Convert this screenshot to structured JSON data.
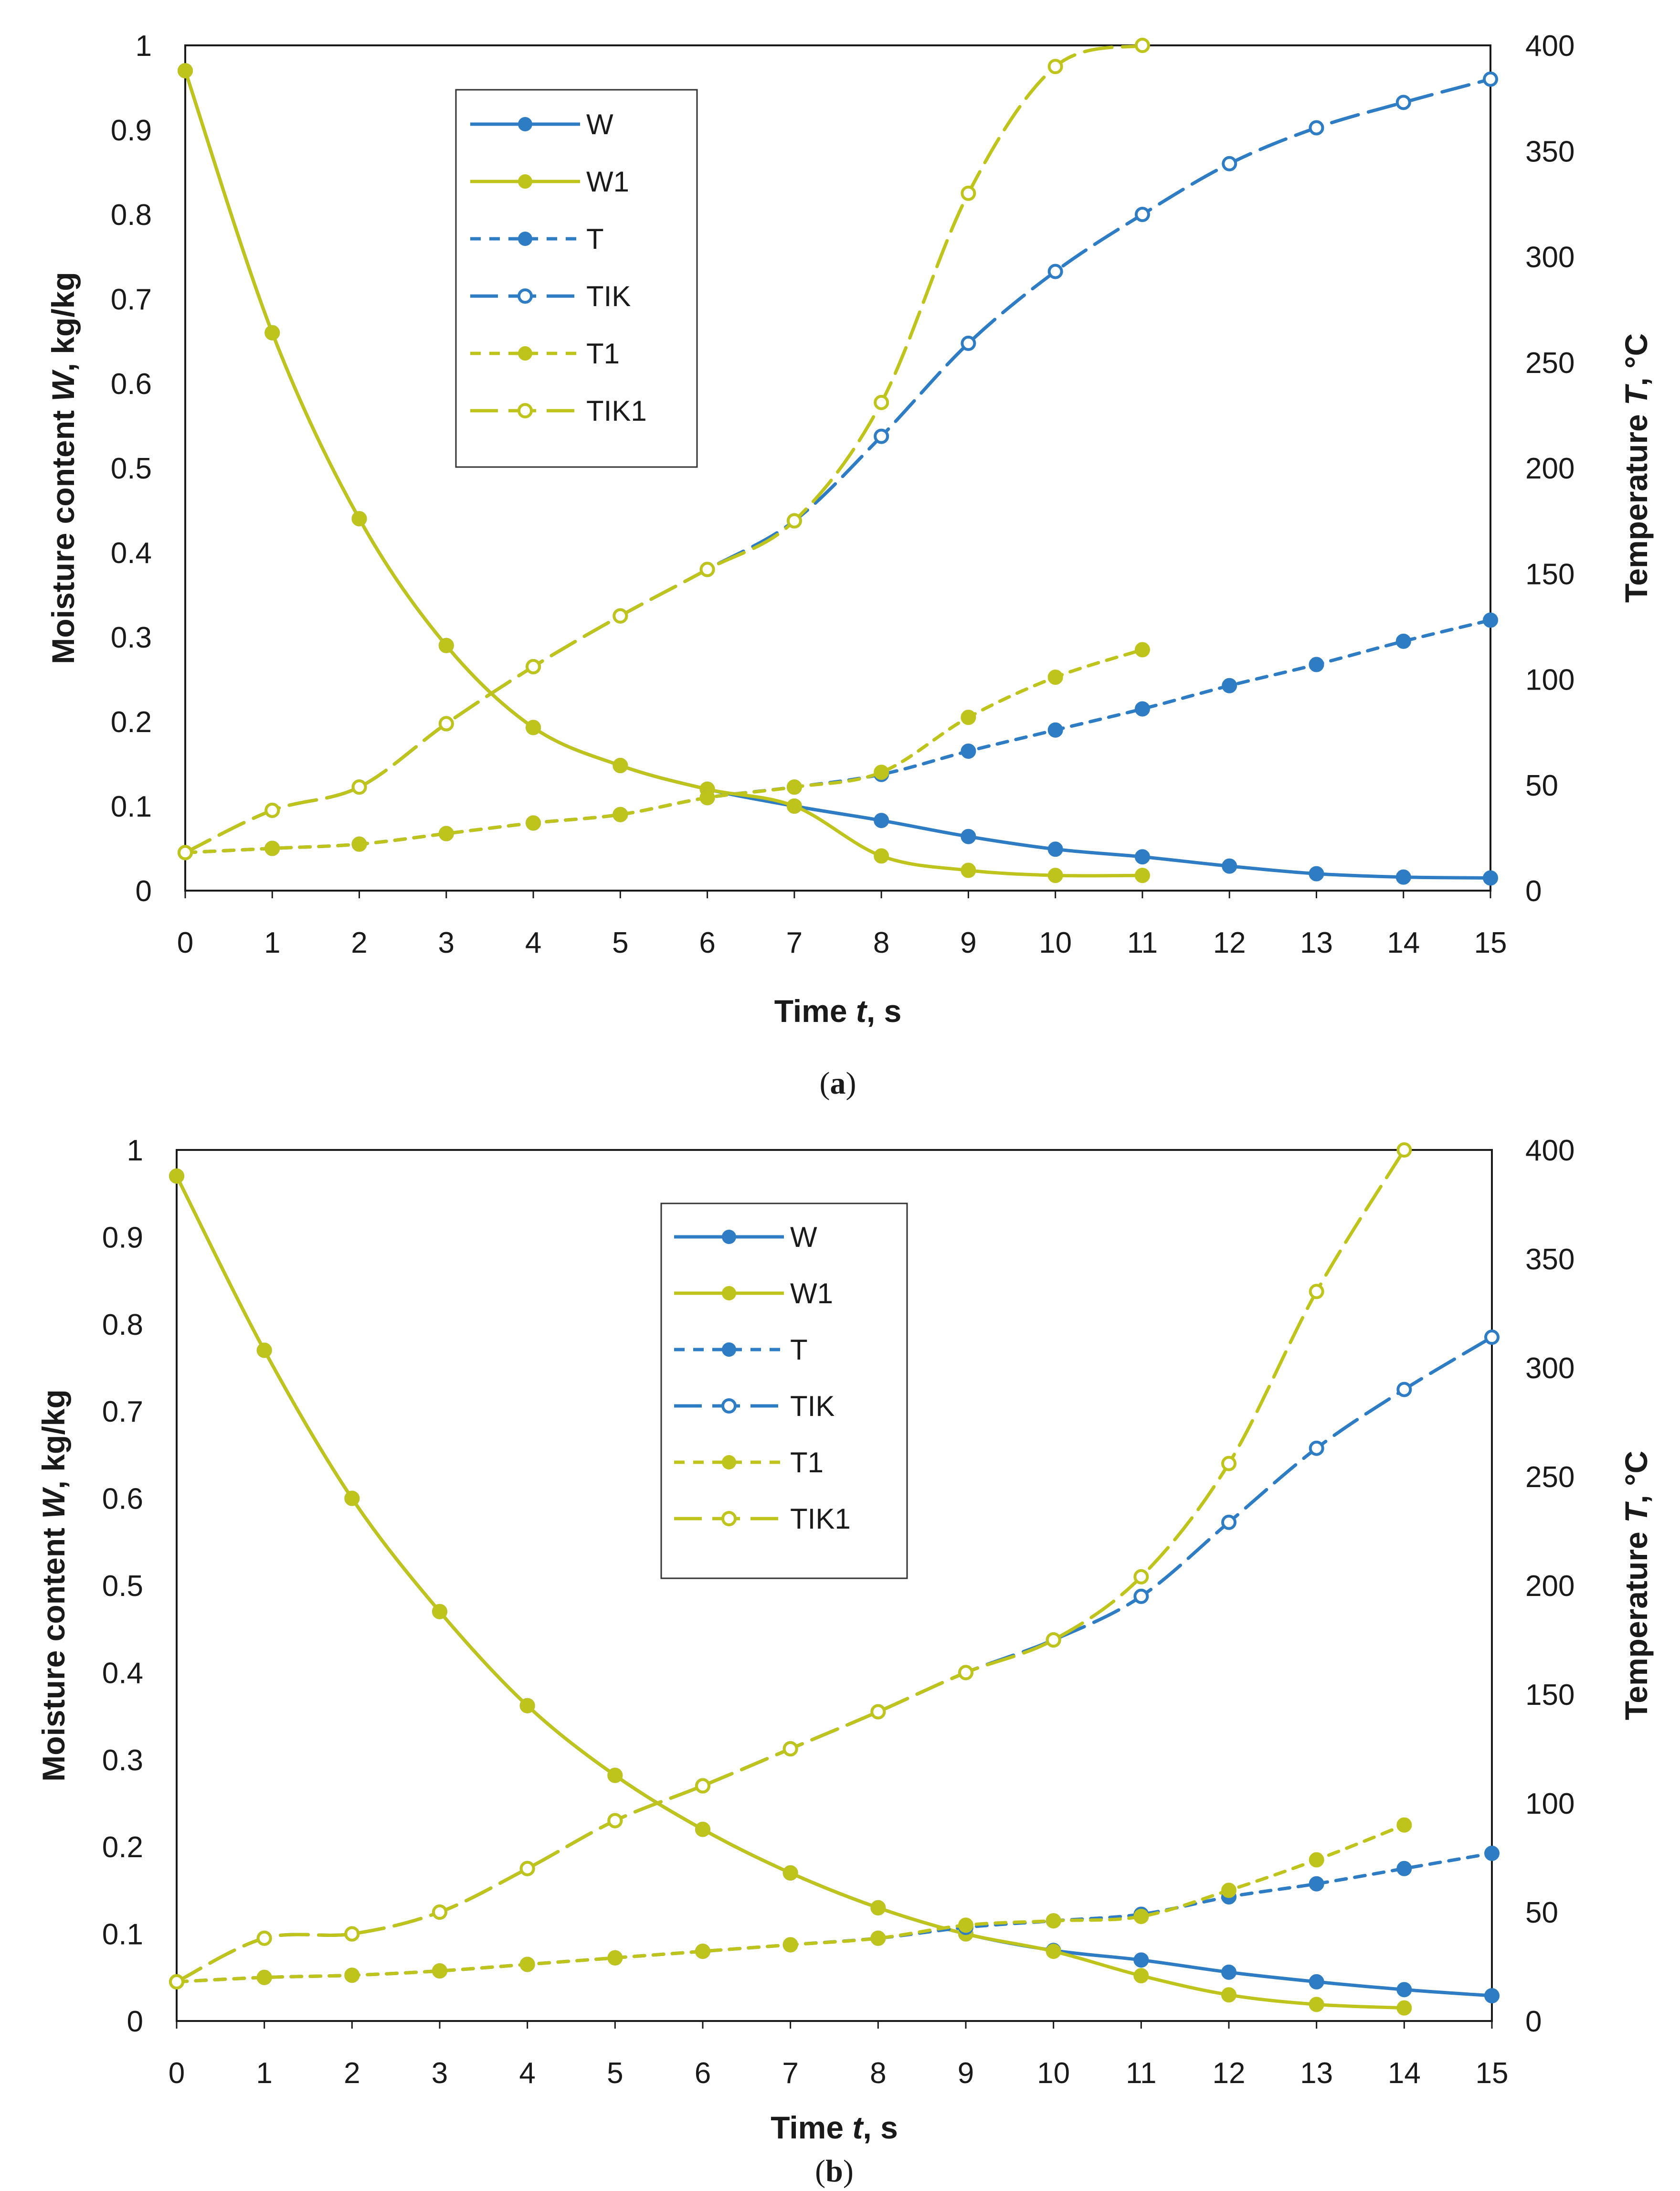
{
  "chart_data": [
    {
      "panel_label_letter": "a",
      "type": "line",
      "xlabel_prefix": "Time ",
      "xlabel_var": "t",
      "xlabel_unit": ", s",
      "ylabel_prefix": "Moisture content ",
      "ylabel_var": "W",
      "ylabel_unit": ", kg/kg",
      "y2label_prefix": "Temperature ",
      "y2label_var": "T",
      "y2label_unit": ", °C",
      "xlim": [
        0,
        15
      ],
      "ylim": [
        0,
        1
      ],
      "y2lim": [
        0,
        400
      ],
      "x_ticks": [
        "0",
        "1",
        "2",
        "3",
        "4",
        "5",
        "6",
        "7",
        "8",
        "9",
        "10",
        "11",
        "12",
        "13",
        "14",
        "15"
      ],
      "y_ticks": [
        "0",
        "0.1",
        "0.2",
        "0.3",
        "0.4",
        "0.5",
        "0.6",
        "0.7",
        "0.8",
        "0.9",
        "1"
      ],
      "y2_ticks": [
        "0",
        "50",
        "100",
        "150",
        "200",
        "250",
        "300",
        "350",
        "400"
      ],
      "grid": false,
      "legend_position": "top-left",
      "series": [
        {
          "name": "W",
          "axis": "left",
          "color": "#2e7cc4",
          "dash": "solid",
          "marker": "filled",
          "x": [
            0,
            1,
            2,
            3,
            4,
            5,
            6,
            7,
            8,
            9,
            10,
            11,
            12,
            13,
            14,
            15
          ],
          "values": [
            0.97,
            0.66,
            0.44,
            0.29,
            0.193,
            0.148,
            0.12,
            0.1,
            0.083,
            0.064,
            0.049,
            0.04,
            0.029,
            0.02,
            0.016,
            0.015
          ]
        },
        {
          "name": "W1",
          "axis": "left",
          "color": "#bfc41c",
          "dash": "solid",
          "marker": "filled",
          "x": [
            0,
            1,
            2,
            3,
            4,
            5,
            6,
            7,
            8,
            9,
            10,
            11
          ],
          "values": [
            0.97,
            0.66,
            0.44,
            0.29,
            0.193,
            0.148,
            0.12,
            0.1,
            0.041,
            0.024,
            0.018,
            0.018
          ]
        },
        {
          "name": "T",
          "axis": "right",
          "color": "#2e7cc4",
          "dash": "short",
          "marker": "filled",
          "x": [
            0,
            1,
            2,
            3,
            4,
            5,
            6,
            7,
            8,
            9,
            10,
            11,
            12,
            13,
            14,
            15
          ],
          "values": [
            18,
            20,
            22,
            27,
            32,
            36,
            44,
            49,
            55,
            66,
            76,
            86,
            97,
            107,
            118,
            128
          ]
        },
        {
          "name": "TIK",
          "axis": "right",
          "color": "#2e7cc4",
          "dash": "long",
          "marker": "hollow",
          "x": [
            0,
            1,
            2,
            3,
            4,
            5,
            6,
            7,
            8,
            9,
            10,
            11,
            12,
            13,
            14,
            15
          ],
          "values": [
            18,
            38,
            49,
            79,
            106,
            130,
            152,
            175,
            215,
            259,
            293,
            320,
            344,
            361,
            373,
            384
          ]
        },
        {
          "name": "T1",
          "axis": "right",
          "color": "#bfc41c",
          "dash": "short",
          "marker": "filled",
          "x": [
            0,
            1,
            2,
            3,
            4,
            5,
            6,
            7,
            8,
            9,
            10,
            11
          ],
          "values": [
            18,
            20,
            22,
            27,
            32,
            36,
            44,
            49,
            56,
            82,
            101,
            114
          ]
        },
        {
          "name": "TIK1",
          "axis": "right",
          "color": "#bfc41c",
          "dash": "long",
          "marker": "hollow",
          "x": [
            0,
            1,
            2,
            3,
            4,
            5,
            6,
            7,
            8,
            9,
            10,
            11
          ],
          "values": [
            18,
            38,
            49,
            79,
            106,
            130,
            152,
            175,
            231,
            330,
            390,
            400
          ]
        }
      ]
    },
    {
      "panel_label_letter": "b",
      "type": "line",
      "xlabel_prefix": "Time ",
      "xlabel_var": "t",
      "xlabel_unit": ", s",
      "ylabel_prefix": "Moisture content ",
      "ylabel_var": "W",
      "ylabel_unit": ", kg/kg",
      "y2label_prefix": "Temperature ",
      "y2label_var": "T",
      "y2label_unit": ", °C",
      "xlim": [
        0,
        15
      ],
      "ylim": [
        0,
        1
      ],
      "y2lim": [
        0,
        400
      ],
      "x_ticks": [
        "0",
        "1",
        "2",
        "3",
        "4",
        "5",
        "6",
        "7",
        "8",
        "9",
        "10",
        "11",
        "12",
        "13",
        "14",
        "15"
      ],
      "y_ticks": [
        "0",
        "0.1",
        "0.2",
        "0.3",
        "0.4",
        "0.5",
        "0.6",
        "0.7",
        "0.8",
        "0.9",
        "1"
      ],
      "y2_ticks": [
        "0",
        "50",
        "100",
        "150",
        "200",
        "250",
        "300",
        "350",
        "400"
      ],
      "grid": false,
      "legend_position": "top-center",
      "series": [
        {
          "name": "W",
          "axis": "left",
          "color": "#2e7cc4",
          "dash": "solid",
          "marker": "filled",
          "x": [
            0,
            1,
            2,
            3,
            4,
            5,
            6,
            7,
            8,
            9,
            10,
            11,
            12,
            13,
            14,
            15
          ],
          "values": [
            0.97,
            0.77,
            0.6,
            0.47,
            0.362,
            0.282,
            0.22,
            0.17,
            0.13,
            0.1,
            0.081,
            0.07,
            0.056,
            0.045,
            0.036,
            0.029
          ]
        },
        {
          "name": "W1",
          "axis": "left",
          "color": "#bfc41c",
          "dash": "solid",
          "marker": "filled",
          "x": [
            0,
            1,
            2,
            3,
            4,
            5,
            6,
            7,
            8,
            9,
            10,
            11,
            12,
            13,
            14
          ],
          "values": [
            0.97,
            0.77,
            0.6,
            0.47,
            0.362,
            0.282,
            0.22,
            0.17,
            0.13,
            0.1,
            0.08,
            0.052,
            0.03,
            0.019,
            0.015
          ]
        },
        {
          "name": "T",
          "axis": "right",
          "color": "#2e7cc4",
          "dash": "short",
          "marker": "filled",
          "x": [
            0,
            1,
            2,
            3,
            4,
            5,
            6,
            7,
            8,
            9,
            10,
            11,
            12,
            13,
            14,
            15
          ],
          "values": [
            18,
            20,
            21,
            23,
            26,
            29,
            32,
            35,
            38,
            43,
            46,
            49,
            57,
            63,
            70,
            77
          ]
        },
        {
          "name": "TIK",
          "axis": "right",
          "color": "#2e7cc4",
          "dash": "long",
          "marker": "hollow",
          "x": [
            0,
            1,
            2,
            3,
            4,
            5,
            6,
            7,
            8,
            9,
            10,
            11,
            12,
            13,
            14,
            15
          ],
          "values": [
            18,
            38,
            40,
            50,
            70,
            92,
            108,
            125,
            142,
            160,
            175,
            195,
            229,
            263,
            290,
            314
          ]
        },
        {
          "name": "T1",
          "axis": "right",
          "color": "#bfc41c",
          "dash": "short",
          "marker": "filled",
          "x": [
            0,
            1,
            2,
            3,
            4,
            5,
            6,
            7,
            8,
            9,
            10,
            11,
            12,
            13,
            14
          ],
          "values": [
            18,
            20,
            21,
            23,
            26,
            29,
            32,
            35,
            38,
            44,
            46,
            48,
            60,
            74,
            90
          ]
        },
        {
          "name": "TIK1",
          "axis": "right",
          "color": "#bfc41c",
          "dash": "long",
          "marker": "hollow",
          "x": [
            0,
            1,
            2,
            3,
            4,
            5,
            6,
            7,
            8,
            9,
            10,
            11,
            12,
            13,
            14
          ],
          "values": [
            18,
            38,
            40,
            50,
            70,
            92,
            108,
            125,
            142,
            160,
            175,
            204,
            256,
            335,
            400
          ]
        }
      ]
    }
  ]
}
